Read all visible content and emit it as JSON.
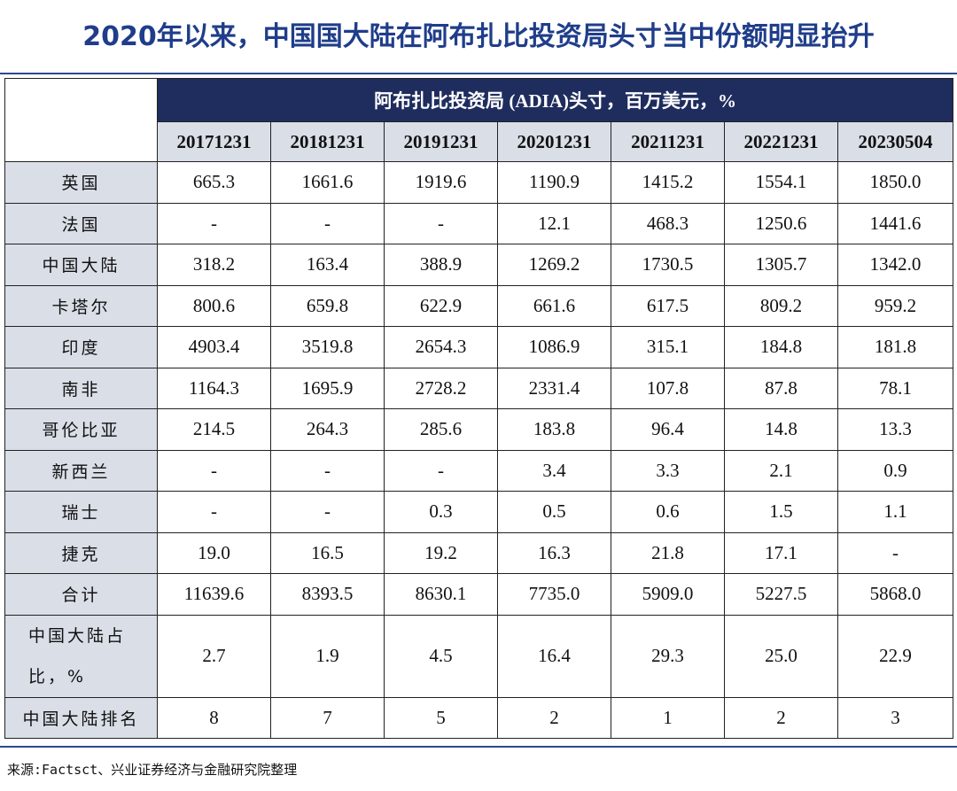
{
  "header": {
    "title": "2020年以来，中国国大陆在阿布扎比投资局头寸当中份额明显抬升"
  },
  "table": {
    "group_header": "阿布扎比投资局 (ADIA)头寸，百万美元，%",
    "columns": [
      "20171231",
      "20181231",
      "20191231",
      "20201231",
      "20211231",
      "20221231",
      "20230504"
    ],
    "rows": [
      {
        "label": "英国",
        "cells": [
          "665.3",
          "1661.6",
          "1919.6",
          "1190.9",
          "1415.2",
          "1554.1",
          "1850.0"
        ]
      },
      {
        "label": "法国",
        "cells": [
          "-",
          "-",
          "-",
          "12.1",
          "468.3",
          "1250.6",
          "1441.6"
        ]
      },
      {
        "label": "中国大陆",
        "cells": [
          "318.2",
          "163.4",
          "388.9",
          "1269.2",
          "1730.5",
          "1305.7",
          "1342.0"
        ]
      },
      {
        "label": "卡塔尔",
        "cells": [
          "800.6",
          "659.8",
          "622.9",
          "661.6",
          "617.5",
          "809.2",
          "959.2"
        ]
      },
      {
        "label": "印度",
        "cells": [
          "4903.4",
          "3519.8",
          "2654.3",
          "1086.9",
          "315.1",
          "184.8",
          "181.8"
        ]
      },
      {
        "label": "南非",
        "cells": [
          "1164.3",
          "1695.9",
          "2728.2",
          "2331.4",
          "107.8",
          "87.8",
          "78.1"
        ]
      },
      {
        "label": "哥伦比亚",
        "cells": [
          "214.5",
          "264.3",
          "285.6",
          "183.8",
          "96.4",
          "14.8",
          "13.3"
        ]
      },
      {
        "label": "新西兰",
        "cells": [
          "-",
          "-",
          "-",
          "3.4",
          "3.3",
          "2.1",
          "0.9"
        ]
      },
      {
        "label": "瑞士",
        "cells": [
          "-",
          "-",
          "0.3",
          "0.5",
          "0.6",
          "1.5",
          "1.1"
        ]
      },
      {
        "label": "捷克",
        "cells": [
          "19.0",
          "16.5",
          "19.2",
          "16.3",
          "21.8",
          "17.1",
          "-"
        ]
      },
      {
        "label": "合计",
        "cells": [
          "11639.6",
          "8393.5",
          "8630.1",
          "7735.0",
          "5909.0",
          "5227.5",
          "5868.0"
        ]
      },
      {
        "label": "中国大陆占比，%",
        "cells": [
          "2.7",
          "1.9",
          "4.5",
          "16.4",
          "29.3",
          "25.0",
          "22.9"
        ]
      },
      {
        "label": "中国大陆排名",
        "cells": [
          "8",
          "7",
          "5",
          "2",
          "1",
          "2",
          "3"
        ]
      }
    ]
  },
  "source": "来源:Factsct、兴业证券经济与金融研究院整理"
}
